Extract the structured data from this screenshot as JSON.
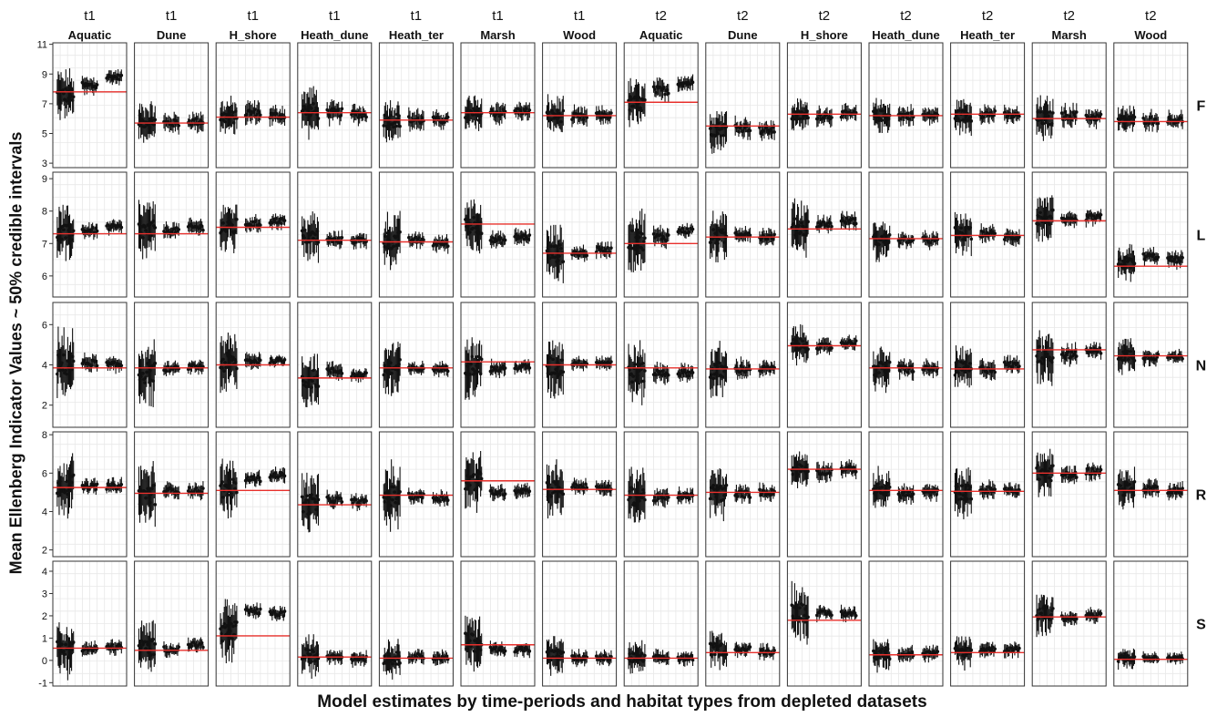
{
  "chart_data": {
    "type": "scatter",
    "xlabel": "Model estimates by time-periods and habitat types from depleted datasets",
    "ylabel": "Mean Ellenberg Indicator Values ~ 50% credible intervals",
    "period_strips": [
      "t1",
      "t1",
      "t1",
      "t1",
      "t1",
      "t1",
      "t1",
      "t2",
      "t2",
      "t2",
      "t2",
      "t2",
      "t2",
      "t2"
    ],
    "habitat_strips": [
      "Aquatic",
      "Dune",
      "H_shore",
      "Heath_dune",
      "Heath_ter",
      "Marsh",
      "Wood",
      "Aquatic",
      "Dune",
      "H_shore",
      "Heath_dune",
      "Heath_ter",
      "Marsh",
      "Wood"
    ],
    "indicators": [
      {
        "name": "F",
        "ylim": [
          2.7,
          11.1
        ],
        "ticks": [
          3,
          5,
          7,
          9,
          11
        ],
        "ref": [
          7.8,
          5.7,
          6.1,
          6.4,
          5.9,
          6.4,
          6.2,
          7.1,
          5.5,
          6.3,
          6.2,
          6.3,
          6.0,
          5.8
        ],
        "groups": [
          [
            7.6,
            8.2,
            8.8
          ],
          [
            5.8,
            5.7,
            5.8
          ],
          [
            6.1,
            6.4,
            6.2
          ],
          [
            6.5,
            6.4,
            6.3
          ],
          [
            5.9,
            5.9,
            5.9
          ],
          [
            6.3,
            6.4,
            6.5
          ],
          [
            6.2,
            6.1,
            6.2
          ],
          [
            7.0,
            7.9,
            8.4
          ],
          [
            5.3,
            5.4,
            5.2
          ],
          [
            6.2,
            6.2,
            6.3
          ],
          [
            6.2,
            6.2,
            6.2
          ],
          [
            6.2,
            6.3,
            6.2
          ],
          [
            6.0,
            6.2,
            6.1
          ],
          [
            5.9,
            5.9,
            5.9
          ]
        ],
        "spread": [
          [
            1.8,
            0.8,
            0.6
          ],
          [
            1.4,
            0.8,
            0.8
          ],
          [
            1.4,
            0.9,
            0.8
          ],
          [
            1.8,
            0.9,
            0.8
          ],
          [
            1.6,
            0.9,
            0.7
          ],
          [
            1.4,
            0.9,
            0.7
          ],
          [
            1.4,
            0.8,
            0.7
          ],
          [
            1.8,
            0.9,
            0.7
          ],
          [
            1.6,
            0.9,
            0.8
          ],
          [
            1.2,
            0.8,
            0.7
          ],
          [
            1.2,
            0.8,
            0.7
          ],
          [
            1.3,
            0.8,
            0.7
          ],
          [
            1.6,
            0.9,
            0.8
          ],
          [
            1.0,
            0.8,
            0.7
          ]
        ]
      },
      {
        "name": "L",
        "ylim": [
          5.35,
          9.2
        ],
        "ticks": [
          6,
          7,
          8,
          9
        ],
        "ref": [
          7.3,
          7.3,
          7.5,
          7.1,
          7.05,
          7.6,
          6.7,
          7.0,
          7.2,
          7.45,
          7.15,
          7.25,
          7.7,
          6.3
        ],
        "groups": [
          [
            7.3,
            7.4,
            7.5
          ],
          [
            7.4,
            7.4,
            7.5
          ],
          [
            7.5,
            7.6,
            7.7
          ],
          [
            7.2,
            7.1,
            7.1
          ],
          [
            7.1,
            7.1,
            7.0
          ],
          [
            7.6,
            7.1,
            7.2
          ],
          [
            6.7,
            6.7,
            6.8
          ],
          [
            7.1,
            7.2,
            7.4
          ],
          [
            7.2,
            7.3,
            7.2
          ],
          [
            7.5,
            7.6,
            7.7
          ],
          [
            7.1,
            7.1,
            7.1
          ],
          [
            7.3,
            7.3,
            7.2
          ],
          [
            7.8,
            7.7,
            7.8
          ],
          [
            6.4,
            6.6,
            6.5
          ]
        ],
        "spread": [
          [
            0.9,
            0.3,
            0.3
          ],
          [
            1.0,
            0.3,
            0.3
          ],
          [
            0.9,
            0.3,
            0.3
          ],
          [
            0.8,
            0.3,
            0.3
          ],
          [
            0.9,
            0.3,
            0.3
          ],
          [
            1.0,
            0.3,
            0.3
          ],
          [
            0.9,
            0.3,
            0.3
          ],
          [
            1.0,
            0.4,
            0.3
          ],
          [
            0.8,
            0.3,
            0.3
          ],
          [
            0.9,
            0.3,
            0.3
          ],
          [
            0.7,
            0.3,
            0.3
          ],
          [
            0.7,
            0.3,
            0.3
          ],
          [
            0.8,
            0.3,
            0.3
          ],
          [
            0.6,
            0.3,
            0.3
          ]
        ]
      },
      {
        "name": "N",
        "ylim": [
          0.9,
          7.1
        ],
        "ticks": [
          2,
          4,
          6
        ],
        "ref": [
          3.85,
          3.85,
          4.0,
          3.35,
          3.85,
          4.15,
          4.0,
          3.85,
          3.8,
          4.95,
          3.85,
          3.8,
          4.75,
          4.45
        ],
        "groups": [
          [
            4.0,
            4.1,
            4.0
          ],
          [
            3.6,
            3.8,
            3.9
          ],
          [
            4.1,
            4.2,
            4.2
          ],
          [
            3.3,
            3.7,
            3.5
          ],
          [
            3.8,
            3.8,
            3.8
          ],
          [
            4.0,
            3.8,
            3.9
          ],
          [
            3.9,
            4.1,
            4.1
          ],
          [
            3.6,
            3.6,
            3.6
          ],
          [
            3.7,
            3.8,
            3.8
          ],
          [
            5.0,
            4.9,
            5.1
          ],
          [
            3.8,
            3.8,
            3.8
          ],
          [
            3.8,
            3.8,
            4.0
          ],
          [
            4.5,
            4.5,
            4.7
          ],
          [
            4.5,
            4.4,
            4.4
          ]
        ],
        "spread": [
          [
            1.8,
            0.5,
            0.5
          ],
          [
            1.7,
            0.4,
            0.4
          ],
          [
            1.6,
            0.5,
            0.4
          ],
          [
            1.5,
            0.5,
            0.4
          ],
          [
            1.6,
            0.4,
            0.4
          ],
          [
            1.7,
            0.5,
            0.4
          ],
          [
            1.6,
            0.4,
            0.4
          ],
          [
            1.6,
            0.6,
            0.5
          ],
          [
            1.5,
            0.6,
            0.5
          ],
          [
            1.0,
            0.5,
            0.4
          ],
          [
            1.2,
            0.6,
            0.5
          ],
          [
            1.2,
            0.6,
            0.5
          ],
          [
            1.5,
            0.6,
            0.5
          ],
          [
            1.0,
            0.5,
            0.4
          ]
        ]
      },
      {
        "name": "R",
        "ylim": [
          1.65,
          8.15
        ],
        "ticks": [
          2,
          4,
          6,
          8
        ],
        "ref": [
          5.25,
          4.95,
          5.1,
          4.35,
          4.85,
          5.6,
          5.15,
          4.85,
          5.0,
          6.2,
          5.1,
          5.05,
          6.0,
          5.1
        ],
        "groups": [
          [
            5.4,
            5.3,
            5.3
          ],
          [
            4.9,
            5.1,
            5.1
          ],
          [
            5.2,
            5.7,
            5.9
          ],
          [
            4.4,
            4.6,
            4.5
          ],
          [
            4.8,
            4.8,
            4.7
          ],
          [
            5.6,
            5.0,
            5.1
          ],
          [
            5.2,
            5.3,
            5.2
          ],
          [
            4.8,
            4.7,
            4.8
          ],
          [
            5.0,
            4.9,
            5.0
          ],
          [
            6.2,
            6.1,
            6.2
          ],
          [
            5.1,
            4.9,
            5.0
          ],
          [
            5.0,
            5.1,
            5.1
          ],
          [
            6.0,
            5.9,
            6.1
          ],
          [
            5.2,
            5.2,
            5.1
          ]
        ],
        "spread": [
          [
            1.7,
            0.5,
            0.5
          ],
          [
            1.8,
            0.5,
            0.5
          ],
          [
            1.6,
            0.5,
            0.5
          ],
          [
            1.8,
            0.5,
            0.5
          ],
          [
            1.8,
            0.5,
            0.5
          ],
          [
            1.7,
            0.5,
            0.5
          ],
          [
            1.5,
            0.5,
            0.5
          ],
          [
            1.6,
            0.6,
            0.5
          ],
          [
            1.5,
            0.6,
            0.5
          ],
          [
            1.0,
            0.6,
            0.5
          ],
          [
            1.2,
            0.6,
            0.5
          ],
          [
            1.3,
            0.6,
            0.5
          ],
          [
            1.4,
            0.6,
            0.5
          ],
          [
            1.2,
            0.6,
            0.5
          ]
        ]
      },
      {
        "name": "S",
        "ylim": [
          -1.15,
          4.45
        ],
        "ticks": [
          -1,
          0,
          1,
          2,
          3,
          4
        ],
        "ref": [
          0.55,
          0.45,
          1.1,
          0.15,
          0.1,
          0.7,
          0.1,
          0.1,
          0.35,
          1.8,
          0.25,
          0.35,
          1.95,
          0.05
        ],
        "groups": [
          [
            0.5,
            0.5,
            0.6
          ],
          [
            0.6,
            0.5,
            0.7
          ],
          [
            1.3,
            2.2,
            2.1
          ],
          [
            0.2,
            0.2,
            0.1
          ],
          [
            0.1,
            0.2,
            0.1
          ],
          [
            0.8,
            0.5,
            0.5
          ],
          [
            0.2,
            0.1,
            0.1
          ],
          [
            0.1,
            0.1,
            0.1
          ],
          [
            0.5,
            0.5,
            0.4
          ],
          [
            2.2,
            2.1,
            2.1
          ],
          [
            0.3,
            0.3,
            0.3
          ],
          [
            0.4,
            0.5,
            0.5
          ],
          [
            2.1,
            1.9,
            2.0
          ],
          [
            0.1,
            0.1,
            0.1
          ]
        ],
        "spread": [
          [
            1.3,
            0.4,
            0.4
          ],
          [
            1.2,
            0.4,
            0.4
          ],
          [
            1.6,
            0.4,
            0.4
          ],
          [
            1.0,
            0.4,
            0.4
          ],
          [
            0.9,
            0.4,
            0.4
          ],
          [
            1.4,
            0.4,
            0.4
          ],
          [
            0.9,
            0.4,
            0.4
          ],
          [
            0.8,
            0.4,
            0.4
          ],
          [
            0.9,
            0.4,
            0.4
          ],
          [
            1.4,
            0.4,
            0.4
          ],
          [
            0.8,
            0.4,
            0.4
          ],
          [
            0.8,
            0.4,
            0.4
          ],
          [
            1.2,
            0.4,
            0.4
          ],
          [
            0.5,
            0.3,
            0.3
          ]
        ]
      }
    ],
    "grid": true,
    "colors": {
      "reference_line": "#e8302c",
      "points": "#111111",
      "panel_background": "#ffffff",
      "grid": "#e8e8e8",
      "frame": "#333333"
    }
  }
}
